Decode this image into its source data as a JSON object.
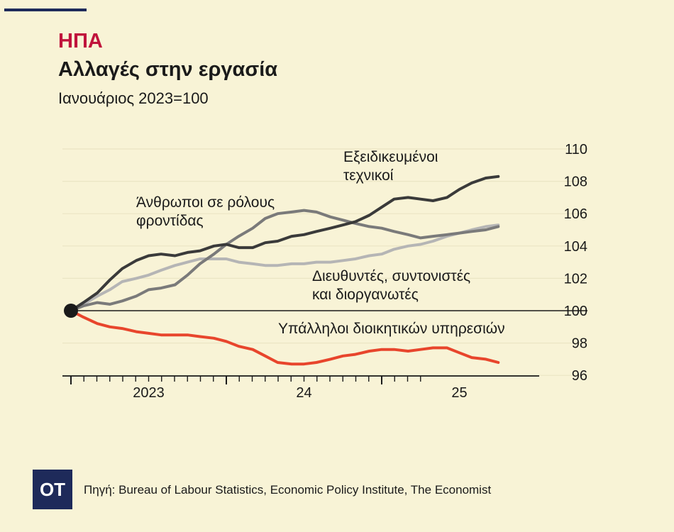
{
  "header": {
    "kicker": "ΗΠΑ",
    "title": "Αλλαγές στην εργασία",
    "subtitle": "Ιανουάριος 2023=100"
  },
  "footer": {
    "logo": "OT",
    "source": "Πηγή: Bureau of Labour Statistics, Economic Policy Institute, The Economist"
  },
  "chart_data": {
    "type": "line",
    "ylim": [
      96,
      110
    ],
    "yticks": [
      "110",
      "108",
      "106",
      "104",
      "102",
      "100",
      "98",
      "96"
    ],
    "ytick_values": [
      110,
      108,
      106,
      104,
      102,
      100,
      98,
      96
    ],
    "baseline": 100,
    "x_range": [
      2023.0,
      2025.5
    ],
    "xtick_labels": [
      {
        "label": "2023",
        "x": 2023.5
      },
      {
        "label": "24",
        "x": 2024.5
      },
      {
        "label": "25",
        "x": 2025.5
      }
    ],
    "grid": true,
    "series": [
      {
        "name": "Εξειδικευμένοι τεχνικοί",
        "color": "#3a3a3a",
        "points": [
          [
            2023.0,
            100
          ],
          [
            2023.08,
            100.5
          ],
          [
            2023.17,
            101.1
          ],
          [
            2023.25,
            101.9
          ],
          [
            2023.33,
            102.6
          ],
          [
            2023.42,
            103.1
          ],
          [
            2023.5,
            103.4
          ],
          [
            2023.58,
            103.5
          ],
          [
            2023.67,
            103.4
          ],
          [
            2023.75,
            103.6
          ],
          [
            2023.83,
            103.7
          ],
          [
            2023.92,
            104.0
          ],
          [
            2024.0,
            104.1
          ],
          [
            2024.08,
            103.9
          ],
          [
            2024.17,
            103.9
          ],
          [
            2024.25,
            104.2
          ],
          [
            2024.33,
            104.3
          ],
          [
            2024.42,
            104.6
          ],
          [
            2024.5,
            104.7
          ],
          [
            2024.58,
            104.9
          ],
          [
            2024.67,
            105.1
          ],
          [
            2024.75,
            105.3
          ],
          [
            2024.83,
            105.5
          ],
          [
            2024.92,
            105.9
          ],
          [
            2025.0,
            106.4
          ],
          [
            2025.08,
            106.9
          ],
          [
            2025.17,
            107.0
          ],
          [
            2025.25,
            106.9
          ],
          [
            2025.33,
            106.8
          ],
          [
            2025.42,
            107.0
          ],
          [
            2025.5,
            107.5
          ],
          [
            2025.58,
            107.9
          ],
          [
            2025.67,
            108.2
          ],
          [
            2025.75,
            108.3
          ]
        ]
      },
      {
        "name": "Άνθρωποι σε ρόλους φροντίδας",
        "color": "#7a7a7a",
        "points": [
          [
            2023.0,
            100
          ],
          [
            2023.08,
            100.3
          ],
          [
            2023.17,
            100.5
          ],
          [
            2023.25,
            100.4
          ],
          [
            2023.33,
            100.6
          ],
          [
            2023.42,
            100.9
          ],
          [
            2023.5,
            101.3
          ],
          [
            2023.58,
            101.4
          ],
          [
            2023.67,
            101.6
          ],
          [
            2023.75,
            102.2
          ],
          [
            2023.83,
            102.9
          ],
          [
            2023.92,
            103.5
          ],
          [
            2024.0,
            104.1
          ],
          [
            2024.08,
            104.6
          ],
          [
            2024.17,
            105.1
          ],
          [
            2024.25,
            105.7
          ],
          [
            2024.33,
            106.0
          ],
          [
            2024.42,
            106.1
          ],
          [
            2024.5,
            106.2
          ],
          [
            2024.58,
            106.1
          ],
          [
            2024.67,
            105.8
          ],
          [
            2024.75,
            105.6
          ],
          [
            2024.83,
            105.4
          ],
          [
            2024.92,
            105.2
          ],
          [
            2025.0,
            105.1
          ],
          [
            2025.08,
            104.9
          ],
          [
            2025.17,
            104.7
          ],
          [
            2025.25,
            104.5
          ],
          [
            2025.33,
            104.6
          ],
          [
            2025.42,
            104.7
          ],
          [
            2025.5,
            104.8
          ],
          [
            2025.58,
            104.9
          ],
          [
            2025.67,
            105.0
          ],
          [
            2025.75,
            105.2
          ]
        ]
      },
      {
        "name": "Διευθυντές, συντονιστές και διοργανωτές",
        "color": "#b5b5b5",
        "points": [
          [
            2023.0,
            100
          ],
          [
            2023.08,
            100.4
          ],
          [
            2023.17,
            100.9
          ],
          [
            2023.25,
            101.3
          ],
          [
            2023.33,
            101.8
          ],
          [
            2023.42,
            102.0
          ],
          [
            2023.5,
            102.2
          ],
          [
            2023.58,
            102.5
          ],
          [
            2023.67,
            102.8
          ],
          [
            2023.75,
            103.0
          ],
          [
            2023.83,
            103.2
          ],
          [
            2023.92,
            103.2
          ],
          [
            2024.0,
            103.2
          ],
          [
            2024.08,
            103.0
          ],
          [
            2024.17,
            102.9
          ],
          [
            2024.25,
            102.8
          ],
          [
            2024.33,
            102.8
          ],
          [
            2024.42,
            102.9
          ],
          [
            2024.5,
            102.9
          ],
          [
            2024.58,
            103.0
          ],
          [
            2024.67,
            103.0
          ],
          [
            2024.75,
            103.1
          ],
          [
            2024.83,
            103.2
          ],
          [
            2024.92,
            103.4
          ],
          [
            2025.0,
            103.5
          ],
          [
            2025.08,
            103.8
          ],
          [
            2025.17,
            104.0
          ],
          [
            2025.25,
            104.1
          ],
          [
            2025.33,
            104.3
          ],
          [
            2025.42,
            104.6
          ],
          [
            2025.5,
            104.8
          ],
          [
            2025.58,
            105.0
          ],
          [
            2025.67,
            105.2
          ],
          [
            2025.75,
            105.3
          ]
        ]
      },
      {
        "name": "Υπάλληλοι διοικητικών υπηρεσιών",
        "color": "#e8452c",
        "points": [
          [
            2023.0,
            100
          ],
          [
            2023.08,
            99.6
          ],
          [
            2023.17,
            99.2
          ],
          [
            2023.25,
            99.0
          ],
          [
            2023.33,
            98.9
          ],
          [
            2023.42,
            98.7
          ],
          [
            2023.5,
            98.6
          ],
          [
            2023.58,
            98.5
          ],
          [
            2023.67,
            98.5
          ],
          [
            2023.75,
            98.5
          ],
          [
            2023.83,
            98.4
          ],
          [
            2023.92,
            98.3
          ],
          [
            2024.0,
            98.1
          ],
          [
            2024.08,
            97.8
          ],
          [
            2024.17,
            97.6
          ],
          [
            2024.25,
            97.2
          ],
          [
            2024.33,
            96.8
          ],
          [
            2024.42,
            96.7
          ],
          [
            2024.5,
            96.7
          ],
          [
            2024.58,
            96.8
          ],
          [
            2024.67,
            97.0
          ],
          [
            2024.75,
            97.2
          ],
          [
            2024.83,
            97.3
          ],
          [
            2024.92,
            97.5
          ],
          [
            2025.0,
            97.6
          ],
          [
            2025.08,
            97.6
          ],
          [
            2025.17,
            97.5
          ],
          [
            2025.25,
            97.6
          ],
          [
            2025.33,
            97.7
          ],
          [
            2025.42,
            97.7
          ],
          [
            2025.5,
            97.4
          ],
          [
            2025.58,
            97.1
          ],
          [
            2025.67,
            97.0
          ],
          [
            2025.75,
            96.8
          ]
        ]
      }
    ],
    "annotations": [
      {
        "series": 0,
        "lines": [
          "Εξειδικευμένοι",
          "τεχνικοί"
        ]
      },
      {
        "series": 1,
        "lines": [
          "Άνθρωποι σε ρόλους",
          "φροντίδας"
        ]
      },
      {
        "series": 2,
        "lines": [
          "Διευθυντές, συντονιστές",
          "και διοργανωτές"
        ]
      },
      {
        "series": 3,
        "lines": [
          "Υπάλληλοι διοικητικών υπηρεσιών"
        ]
      }
    ]
  }
}
